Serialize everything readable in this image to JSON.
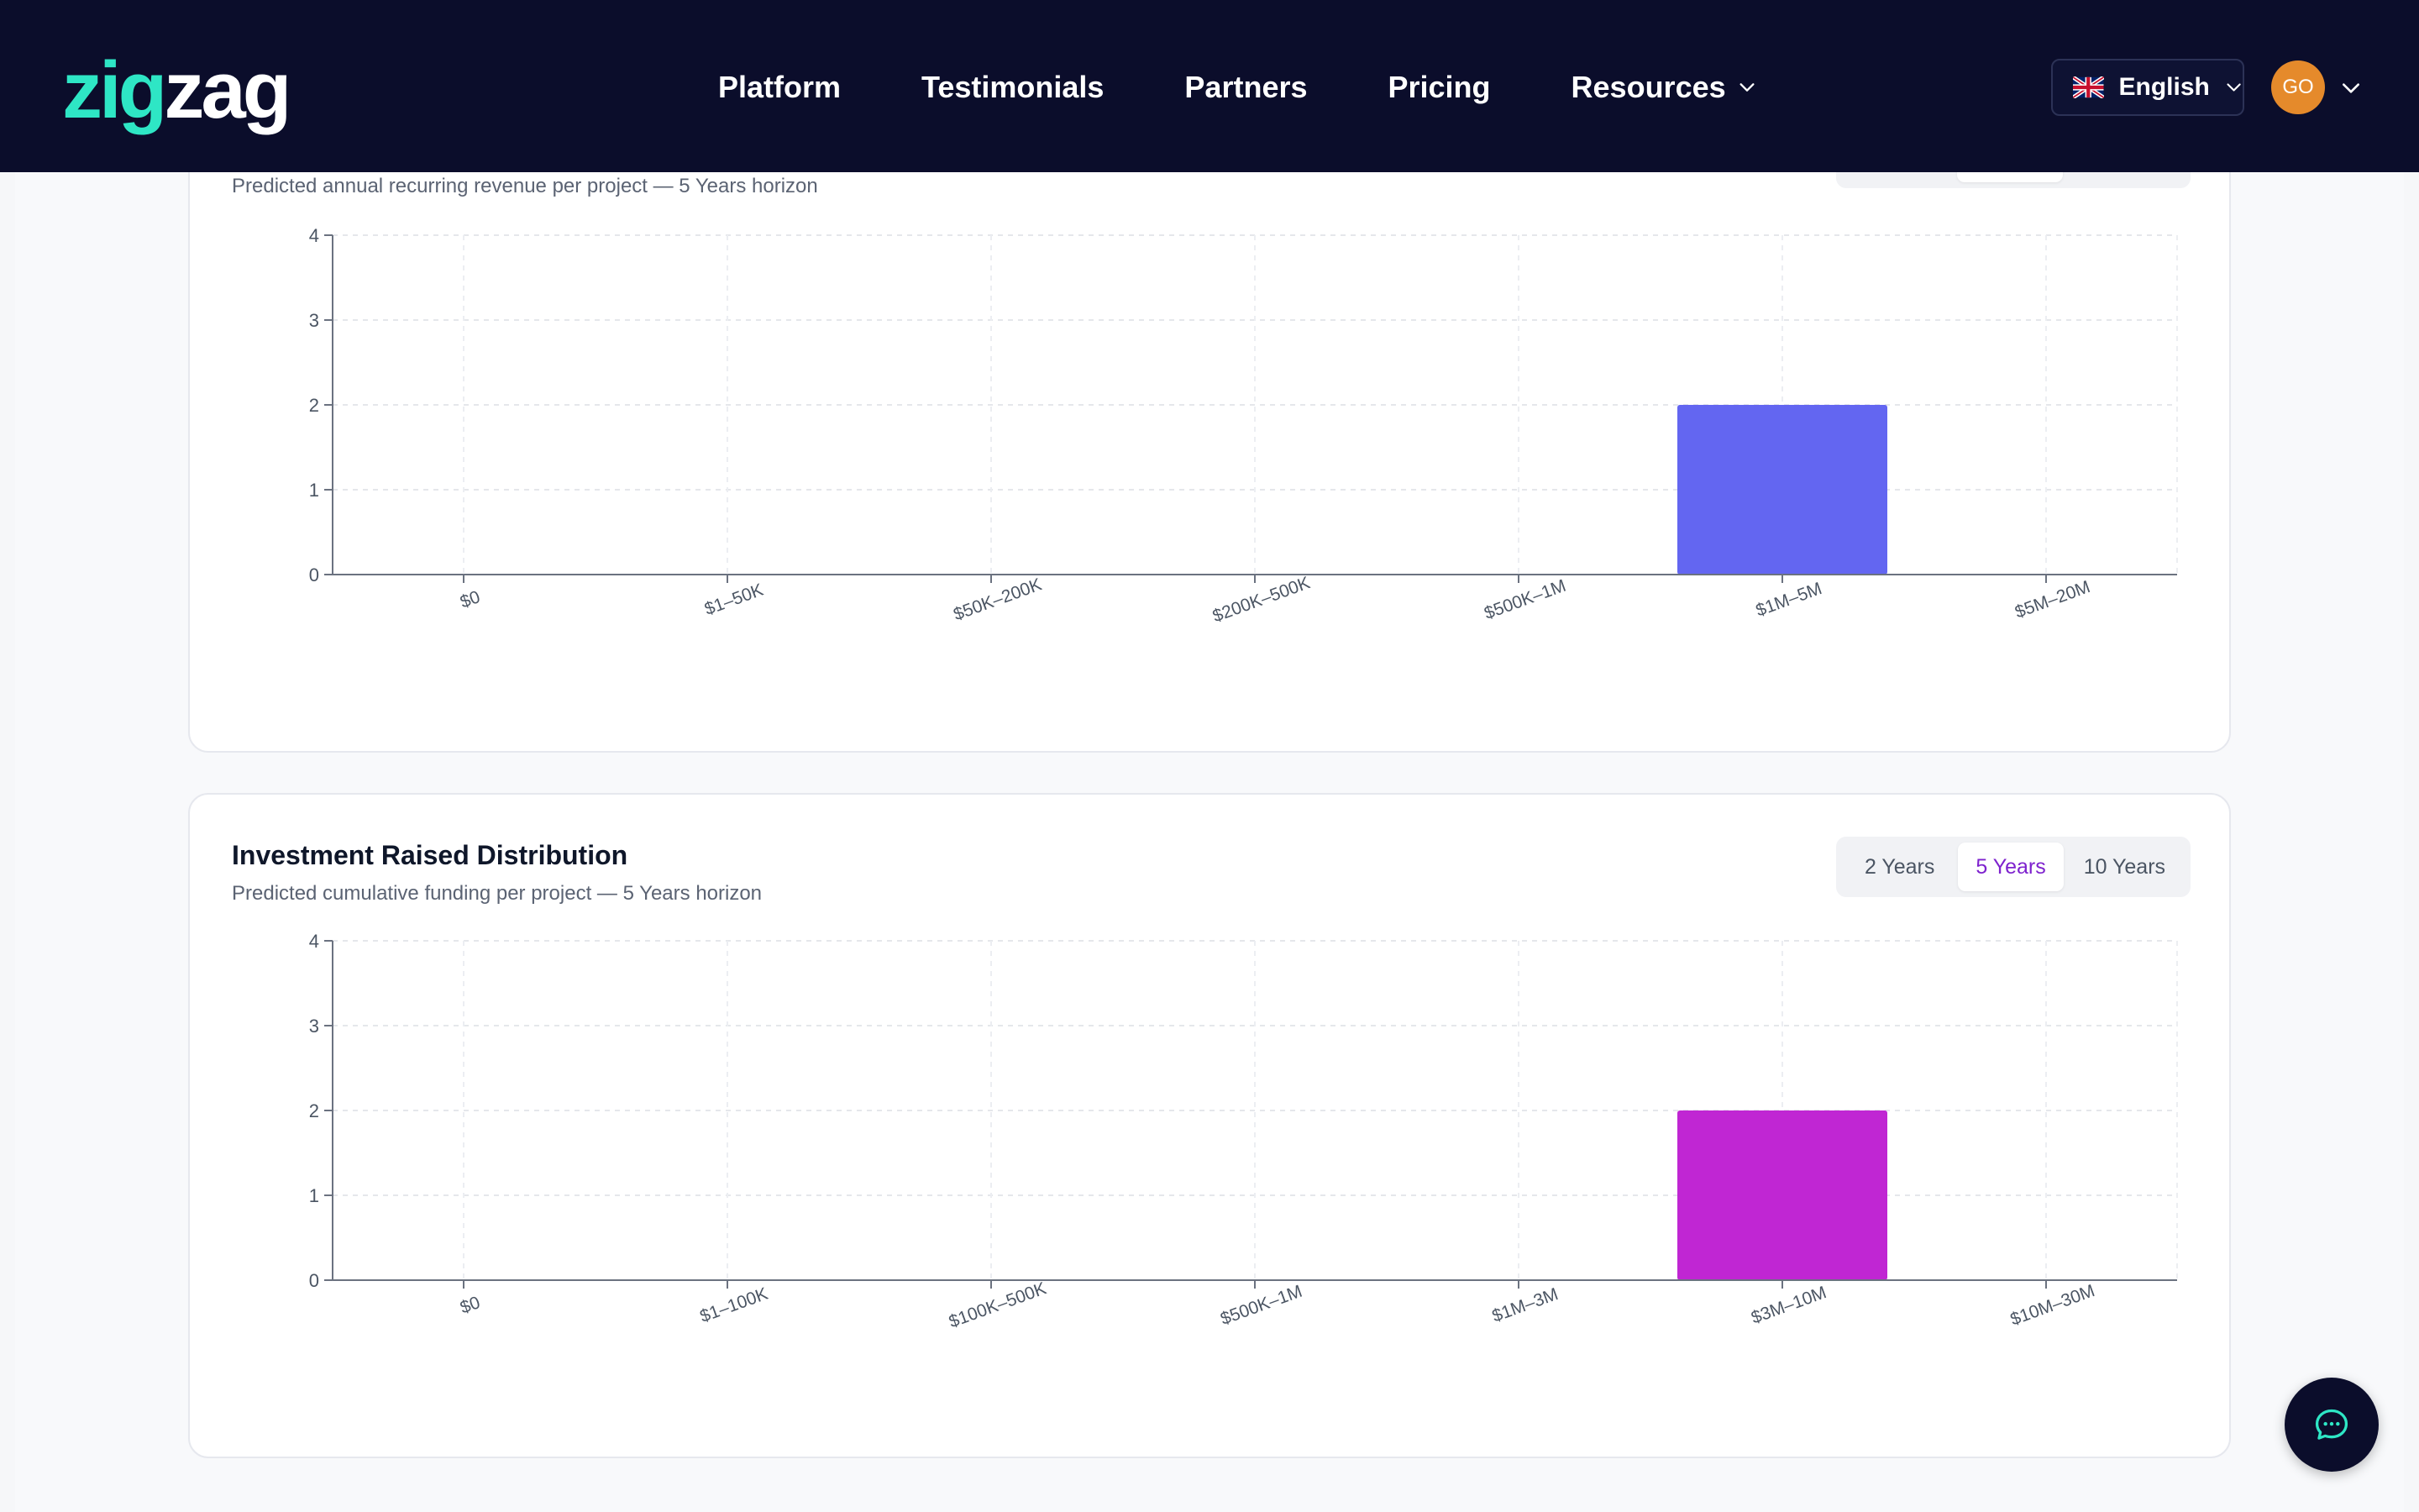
{
  "header": {
    "logo": {
      "part1": "zig",
      "part2": "zag"
    },
    "nav": [
      {
        "label": "Platform"
      },
      {
        "label": "Testimonials"
      },
      {
        "label": "Partners"
      },
      {
        "label": "Pricing"
      },
      {
        "label": "Resources",
        "has_dropdown": true
      }
    ],
    "language": {
      "label": "English",
      "flag_icon": "uk-flag-icon"
    },
    "user": {
      "initials": "GO",
      "avatar_color": "#e58a2b"
    }
  },
  "cards": [
    {
      "title": "",
      "subtitle": "Predicted annual recurring revenue per project — 5 Years horizon",
      "horizon_options": [],
      "chart_data": {
        "type": "bar",
        "categories": [
          "$0",
          "$1–50K",
          "$50K–200K",
          "$200K–500K",
          "$500K–1M",
          "$1M–5M",
          "$5M–20M"
        ],
        "values": [
          0,
          0,
          0,
          0,
          0,
          2,
          0
        ],
        "ylim": [
          0,
          4
        ],
        "yticks": [
          0,
          1,
          2,
          3,
          4
        ],
        "grid": true,
        "color": "#6366f1"
      }
    },
    {
      "title": "Investment Raised Distribution",
      "subtitle": "Predicted cumulative funding per project — 5 Years horizon",
      "horizon_options": [
        {
          "label": "2 Years",
          "active": false
        },
        {
          "label": "5 Years",
          "active": true
        },
        {
          "label": "10 Years",
          "active": false
        }
      ],
      "chart_data": {
        "type": "bar",
        "categories": [
          "$0",
          "$1–100K",
          "$100K–500K",
          "$500K–1M",
          "$1M–3M",
          "$3M–10M",
          "$10M–30M"
        ],
        "values": [
          0,
          0,
          0,
          0,
          0,
          2,
          0
        ],
        "ylim": [
          0,
          4
        ],
        "yticks": [
          0,
          1,
          2,
          3,
          4
        ],
        "grid": true,
        "color": "#c026d3"
      }
    }
  ],
  "chat": {
    "icon": "chat-bubble-icon"
  }
}
